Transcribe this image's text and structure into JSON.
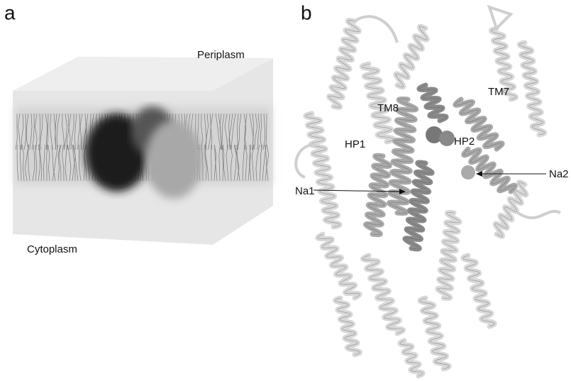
{
  "panel_a": {
    "label": "a",
    "periplasm": "Periplasm",
    "cytoplasm": "Cytoplasm"
  },
  "panel_b": {
    "label": "b",
    "labels": {
      "tm8": "TM8",
      "tm7": "TM7",
      "hp1": "HP1",
      "hp2": "HP2",
      "na1": "Na1",
      "na2": "Na2"
    }
  }
}
